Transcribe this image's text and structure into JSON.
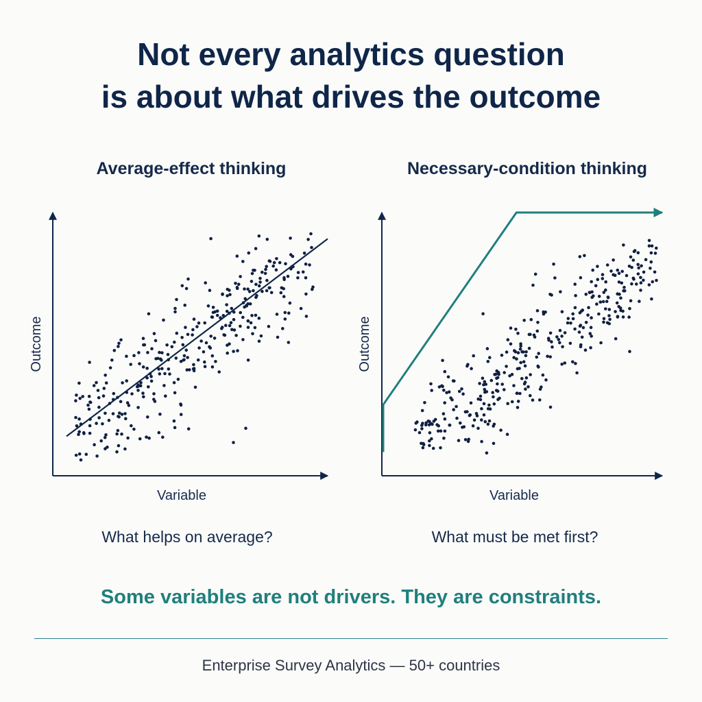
{
  "headline": {
    "line1": "Not every analytics question",
    "line2": "is about what drives the outcome"
  },
  "colors": {
    "navy": "#0f2649",
    "teal": "#1f7f7c",
    "dot": "#102040"
  },
  "chart_data": [
    {
      "type": "scatter",
      "title": "Average-effect thinking",
      "xlabel": "Variable",
      "ylabel": "Outcome",
      "caption": "What helps on average?",
      "xlim": [
        0,
        100
      ],
      "ylim": [
        0,
        100
      ],
      "grid": false,
      "overlay": {
        "kind": "regression-line",
        "points": [
          [
            5,
            15
          ],
          [
            100,
            90
          ]
        ]
      }
    },
    {
      "type": "scatter",
      "title": "Necessary-condition thinking",
      "xlabel": "Variable",
      "ylabel": "Outcome",
      "caption": "What must be met first?",
      "xlim": [
        0,
        100
      ],
      "ylim": [
        0,
        100
      ],
      "grid": false,
      "overlay": {
        "kind": "ceiling-line",
        "points": [
          [
            0,
            9
          ],
          [
            0,
            27
          ],
          [
            48,
            100
          ],
          [
            100,
            100
          ]
        ]
      }
    }
  ],
  "takeaway": "Some variables are not drivers. They are constraints.",
  "footer": "Enterprise Survey Analytics — 50+ countries"
}
